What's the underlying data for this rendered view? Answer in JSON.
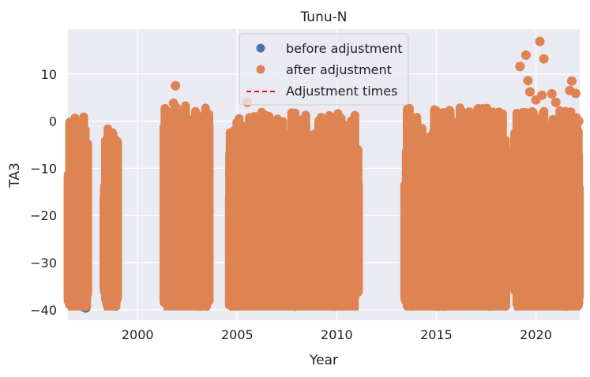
{
  "chart_data": {
    "type": "scatter",
    "title": "Tunu-N",
    "xlabel": "Year",
    "ylabel": "TA3",
    "xlim": [
      1996.5,
      2022.2
    ],
    "ylim": [
      -42.2,
      19.5
    ],
    "x_ticks": [
      2000,
      2005,
      2010,
      2015,
      2020
    ],
    "y_ticks": [
      10,
      0,
      -10,
      -20,
      -30,
      -40
    ],
    "x_tick_labels": [
      "2000",
      "2005",
      "2010",
      "2015",
      "2020"
    ],
    "y_tick_labels": [
      "10",
      "0",
      "−10",
      "−20",
      "−30",
      "−40"
    ],
    "grid": true,
    "legend": {
      "placement": "top-center",
      "entries": [
        {
          "label": "before adjustment",
          "marker": "circle",
          "color": "#4c72b0"
        },
        {
          "label": "after adjustment",
          "marker": "circle",
          "color": "#dd8452"
        },
        {
          "label": "Adjustment times",
          "marker": "dashed-line",
          "color": "#e3120b"
        }
      ]
    },
    "series": [
      {
        "name": "before adjustment",
        "color": "#4c72b0",
        "points": [
          {
            "x": 1997.3,
            "y": -39.4
          },
          {
            "x": 1997.4,
            "y": -39.6
          },
          {
            "x": 1997.2,
            "y": -39.0
          },
          {
            "x": 1998.9,
            "y": -39.2
          },
          {
            "x": 1998.85,
            "y": -39.0
          },
          {
            "x": 1996.9,
            "y": -38.8
          }
        ]
      },
      {
        "name": "after adjustment",
        "color": "#dd8452",
        "bands": [
          {
            "x0": 1996.5,
            "x1": 1997.5,
            "y0": -39.3,
            "y1": 1.0,
            "density": 70
          },
          {
            "x0": 1998.3,
            "x1": 1999.0,
            "y0": -39.3,
            "y1": -0.8,
            "density": 40
          },
          {
            "x0": 2001.3,
            "x1": 2003.6,
            "y0": -39.3,
            "y1": 3.5,
            "density": 110
          },
          {
            "x0": 2004.6,
            "x1": 2011.1,
            "y0": -39.3,
            "y1": 2.0,
            "density": 280
          },
          {
            "x0": 2013.4,
            "x1": 2018.5,
            "y0": -39.3,
            "y1": 3.0,
            "density": 220
          },
          {
            "x0": 2018.9,
            "x1": 2022.2,
            "y0": -39.3,
            "y1": 2.5,
            "density": 150
          }
        ],
        "outliers": [
          {
            "x": 2001.9,
            "y": 7.5
          },
          {
            "x": 2001.8,
            "y": 3.8
          },
          {
            "x": 2005.5,
            "y": 4.0
          },
          {
            "x": 2019.2,
            "y": 11.6
          },
          {
            "x": 2019.5,
            "y": 14.0
          },
          {
            "x": 2019.6,
            "y": 8.6
          },
          {
            "x": 2019.7,
            "y": 6.2
          },
          {
            "x": 2020.0,
            "y": 4.5
          },
          {
            "x": 2020.2,
            "y": 16.9
          },
          {
            "x": 2020.4,
            "y": 13.2
          },
          {
            "x": 2020.3,
            "y": 5.5
          },
          {
            "x": 2020.8,
            "y": 5.8
          },
          {
            "x": 2021.0,
            "y": 4.0
          },
          {
            "x": 2021.7,
            "y": 6.5
          },
          {
            "x": 2021.8,
            "y": 8.5
          },
          {
            "x": 2022.0,
            "y": 5.9
          },
          {
            "x": 2022.15,
            "y": 0.0
          }
        ]
      }
    ]
  }
}
